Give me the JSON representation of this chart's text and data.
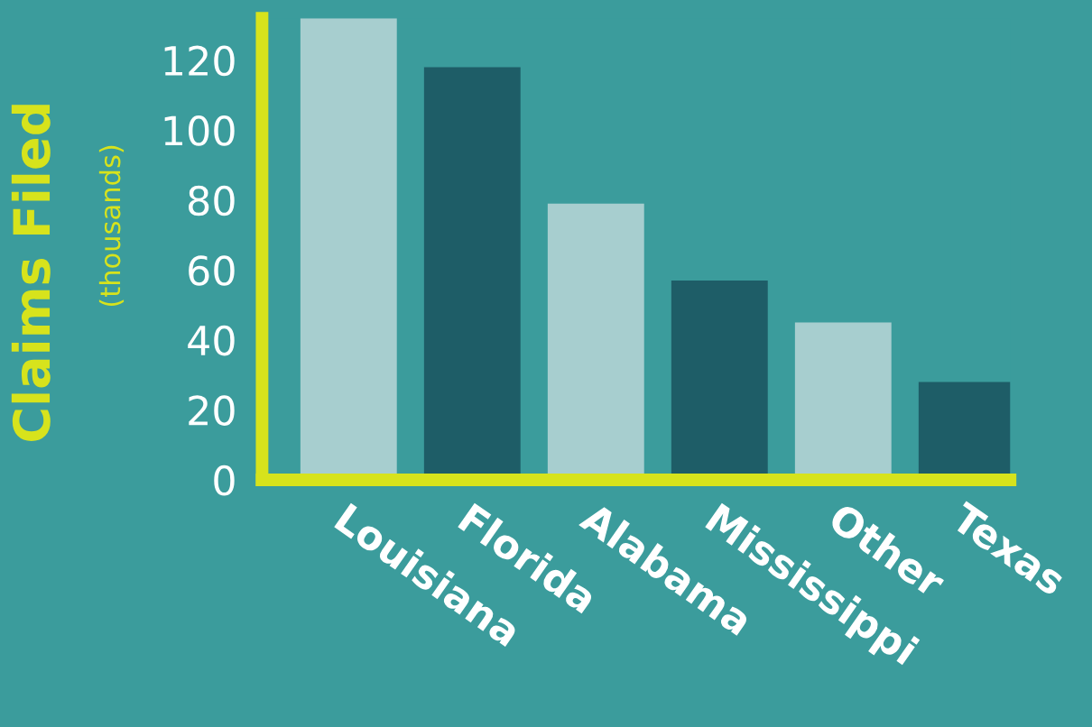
{
  "chart_data": {
    "type": "bar",
    "ylabel": "Claims Filed",
    "annotations": [
      "(thousands)"
    ],
    "categories": [
      "Louisiana",
      "Florida",
      "Alabama",
      "Mississippi",
      "Other",
      "Texas"
    ],
    "values": [
      132,
      118,
      79,
      57,
      45,
      28
    ],
    "colors": [
      "#a7cecf",
      "#1e5d67",
      "#a7cecf",
      "#1e5d67",
      "#a7cecf",
      "#1e5d67"
    ],
    "ylim": [
      0,
      132
    ],
    "yticks": [
      0,
      20,
      40,
      60,
      80,
      100,
      120
    ],
    "grid": false,
    "legend": false
  }
}
